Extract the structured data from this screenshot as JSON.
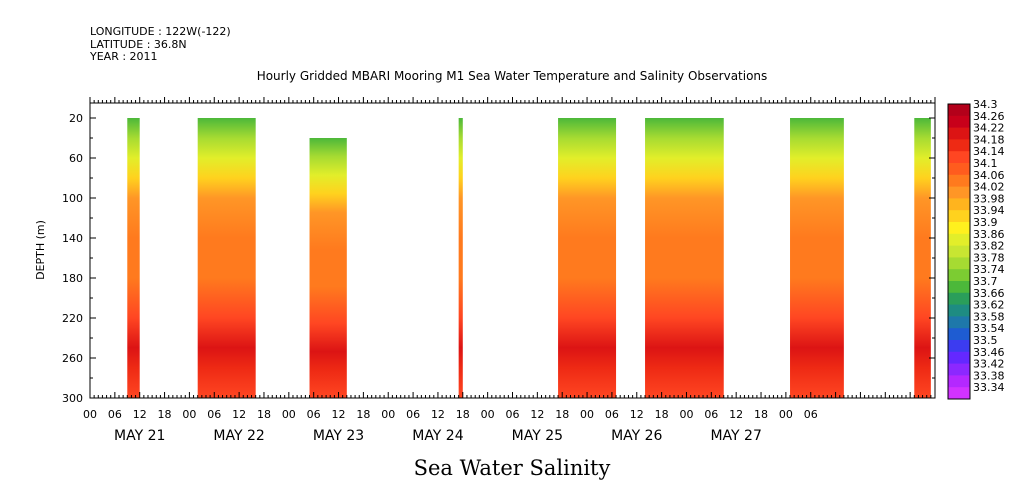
{
  "header": {
    "longitude": "LONGITUDE : 122W(-122)",
    "latitude": "LATITUDE : 36.8N",
    "year": "YEAR : 2011"
  },
  "chart_data": {
    "type": "heatmap",
    "title": "Hourly Gridded MBARI Mooring M1 Sea Water Temperature and Salinity Observations",
    "xlabel": "Sea Water Salinity",
    "ylabel": "DEPTH (m)",
    "x_unit": "hours since MAY 21 00:00",
    "xlim": [
      0,
      204
    ],
    "ylim": [
      300,
      5
    ],
    "y_ticks": [
      20,
      60,
      100,
      140,
      180,
      220,
      260,
      300
    ],
    "x_hour_ticks": [
      "00",
      "06",
      "12",
      "18",
      "00",
      "06",
      "12",
      "18",
      "00",
      "06",
      "12",
      "18",
      "00",
      "06",
      "12",
      "18",
      "00",
      "06",
      "12",
      "18",
      "00",
      "06",
      "12",
      "18",
      "00",
      "06",
      "12",
      "18",
      "00",
      "06"
    ],
    "day_labels": [
      "MAY 21",
      "MAY 22",
      "MAY 23",
      "MAY 24",
      "MAY 25",
      "MAY 26",
      "MAY 27"
    ],
    "colorbar_levels": [
      34.3,
      34.26,
      34.22,
      34.18,
      34.14,
      34.1,
      34.06,
      34.02,
      33.98,
      33.94,
      33.9,
      33.86,
      33.82,
      33.78,
      33.74,
      33.7,
      33.66,
      33.62,
      33.58,
      33.54,
      33.5,
      33.46,
      33.42,
      33.38,
      33.34
    ],
    "colorbar_colors": [
      "#b3001a",
      "#c8001a",
      "#dc1414",
      "#ee2a14",
      "#ff4622",
      "#ff5c1e",
      "#ff7a1e",
      "#ff9626",
      "#ffb41e",
      "#ffd21e",
      "#fff01e",
      "#e2ee2a",
      "#c8e632",
      "#a6db32",
      "#7ccc32",
      "#4cb83a",
      "#2a9e5a",
      "#1e8c82",
      "#1e78aa",
      "#1e5cd2",
      "#3c3cf0",
      "#6428ff",
      "#8c28ff",
      "#b428ff",
      "#d232ff"
    ],
    "observation_blocks": [
      {
        "start_hour": 9,
        "end_hour": 12,
        "top_depth": 20,
        "bottom_depth": 300
      },
      {
        "start_hour": 26,
        "end_hour": 40,
        "top_depth": 20,
        "bottom_depth": 300
      },
      {
        "start_hour": 53,
        "end_hour": 62,
        "top_depth": 40,
        "bottom_depth": 300
      },
      {
        "start_hour": 89,
        "end_hour": 90,
        "top_depth": 20,
        "bottom_depth": 300
      },
      {
        "start_hour": 113,
        "end_hour": 127,
        "top_depth": 20,
        "bottom_depth": 300
      },
      {
        "start_hour": 134,
        "end_hour": 153,
        "top_depth": 20,
        "bottom_depth": 300
      },
      {
        "start_hour": 169,
        "end_hour": 182,
        "top_depth": 20,
        "bottom_depth": 300
      },
      {
        "start_hour": 199,
        "end_hour": 203,
        "top_depth": 20,
        "bottom_depth": 300
      }
    ],
    "salinity_profile": [
      {
        "depth": 20,
        "salinity": 33.7
      },
      {
        "depth": 40,
        "salinity": 33.78
      },
      {
        "depth": 60,
        "salinity": 33.86
      },
      {
        "depth": 80,
        "salinity": 33.96
      },
      {
        "depth": 100,
        "salinity": 34.02
      },
      {
        "depth": 140,
        "salinity": 34.06
      },
      {
        "depth": 180,
        "salinity": 34.08
      },
      {
        "depth": 220,
        "salinity": 34.14
      },
      {
        "depth": 250,
        "salinity": 34.22
      },
      {
        "depth": 270,
        "salinity": 34.2
      },
      {
        "depth": 300,
        "salinity": 34.16
      }
    ]
  }
}
